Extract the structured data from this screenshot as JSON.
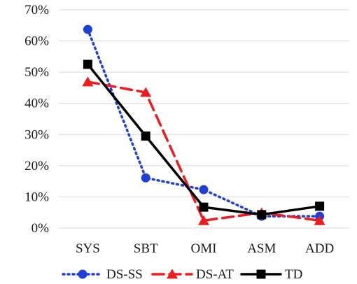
{
  "chart_data": {
    "type": "line",
    "categories": [
      "SYS",
      "SBT",
      "OMI",
      "ASM",
      "ADD"
    ],
    "y_tick_labels": [
      "0%",
      "10%",
      "20%",
      "30%",
      "40%",
      "50%",
      "60%",
      "70%"
    ],
    "ylim": [
      0,
      70
    ],
    "grid": true,
    "legend_position": "bottom",
    "title": "",
    "xlabel": "",
    "ylabel": "",
    "series": [
      {
        "name": "DS-SS",
        "values": [
          63.7,
          16.1,
          12.3,
          3.8,
          3.8
        ],
        "color": "#1f3fd6",
        "line_style": "dotted",
        "marker": "circle"
      },
      {
        "name": "DS-AT",
        "values": [
          46.9,
          43.5,
          2.4,
          4.9,
          2.4
        ],
        "color": "#ee1c1c",
        "line_style": "dashed",
        "marker": "triangle"
      },
      {
        "name": "TD",
        "values": [
          52.5,
          29.5,
          6.7,
          4.3,
          7.0
        ],
        "color": "#000000",
        "line_style": "solid",
        "marker": "square"
      }
    ]
  }
}
